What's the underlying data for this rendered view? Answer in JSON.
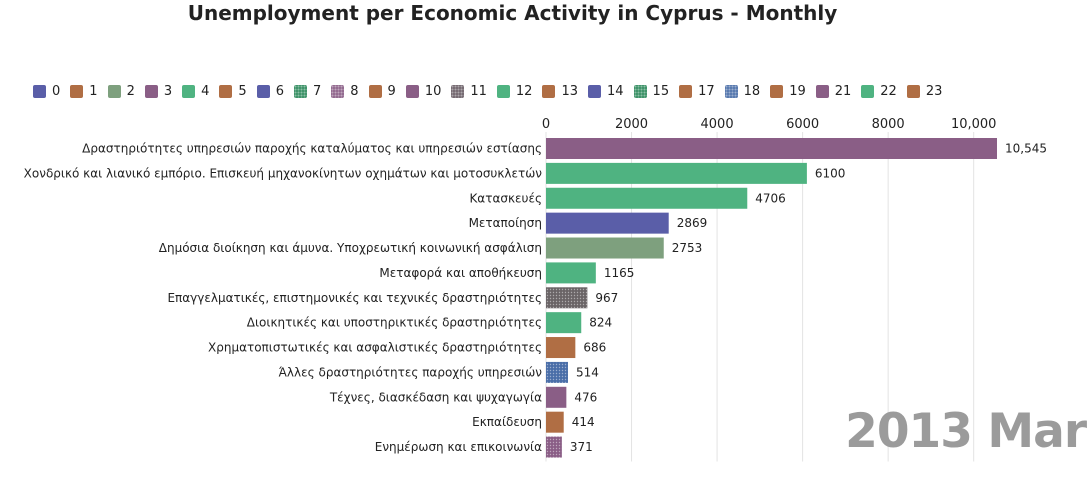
{
  "title": "Unemployment per Economic Activity in Cyprus - Monthly",
  "period_label": "2013 Mar",
  "legend": [
    {
      "label": "0",
      "color": "#5a5ea8",
      "pattern": false
    },
    {
      "label": "1",
      "color": "#b06e44",
      "pattern": false
    },
    {
      "label": "2",
      "color": "#7ea07e",
      "pattern": false
    },
    {
      "label": "3",
      "color": "#8a5e86",
      "pattern": false
    },
    {
      "label": "4",
      "color": "#4fb381",
      "pattern": false
    },
    {
      "label": "5",
      "color": "#b06e44",
      "pattern": false
    },
    {
      "label": "6",
      "color": "#5a5ea8",
      "pattern": false
    },
    {
      "label": "7",
      "color": "#2e8a5c",
      "pattern": true
    },
    {
      "label": "8",
      "color": "#8a5e86",
      "pattern": true
    },
    {
      "label": "9",
      "color": "#b06e44",
      "pattern": false
    },
    {
      "label": "10",
      "color": "#8a5e86",
      "pattern": false
    },
    {
      "label": "11",
      "color": "#6a5e66",
      "pattern": true
    },
    {
      "label": "12",
      "color": "#4fb381",
      "pattern": false
    },
    {
      "label": "13",
      "color": "#b06e44",
      "pattern": false
    },
    {
      "label": "14",
      "color": "#5a5ea8",
      "pattern": false
    },
    {
      "label": "15",
      "color": "#2e8a5c",
      "pattern": true
    },
    {
      "label": "17",
      "color": "#b06e44",
      "pattern": false
    },
    {
      "label": "18",
      "color": "#4a6ea8",
      "pattern": true
    },
    {
      "label": "19",
      "color": "#b06e44",
      "pattern": false
    },
    {
      "label": "21",
      "color": "#8a5e86",
      "pattern": false
    },
    {
      "label": "22",
      "color": "#4fb381",
      "pattern": false
    },
    {
      "label": "23",
      "color": "#b06e44",
      "pattern": false
    }
  ],
  "chart_data": {
    "type": "bar",
    "orientation": "horizontal",
    "title": "Unemployment per Economic Activity in Cyprus - Monthly",
    "period": "2013 Mar",
    "xlim": [
      0,
      10545
    ],
    "ticks": [
      {
        "value": 0,
        "label": "0"
      },
      {
        "value": 2000,
        "label": "2000"
      },
      {
        "value": 4000,
        "label": "4000"
      },
      {
        "value": 6000,
        "label": "6000"
      },
      {
        "value": 8000,
        "label": "8000"
      },
      {
        "value": 10000,
        "label": "10,000"
      }
    ],
    "grid": true,
    "legend_position": "top",
    "bars": [
      {
        "category": "Δραστηριότητες υπηρεσιών παροχής καταλύματος και υπηρεσιών εστίασης",
        "value": 10545,
        "value_label": "10,545",
        "color": "#8a5e86",
        "pattern": false
      },
      {
        "category": "Χονδρικό και λιανικό εμπόριο. Επισκευή μηχανοκίνητων οχημάτων και μοτοσυκλετών",
        "value": 6100,
        "value_label": "6100",
        "color": "#4fb381",
        "pattern": false
      },
      {
        "category": "Κατασκευές",
        "value": 4706,
        "value_label": "4706",
        "color": "#4fb381",
        "pattern": false
      },
      {
        "category": "Μεταποίηση",
        "value": 2869,
        "value_label": "2869",
        "color": "#5a5ea8",
        "pattern": false
      },
      {
        "category": "Δημόσια διοίκηση και άμυνα. Υποχρεωτική κοινωνική ασφάλιση",
        "value": 2753,
        "value_label": "2753",
        "color": "#7ea07e",
        "pattern": false
      },
      {
        "category": "Μεταφορά και αποθήκευση",
        "value": 1165,
        "value_label": "1165",
        "color": "#4fb381",
        "pattern": false
      },
      {
        "category": "Επαγγελματικές, επιστημονικές και τεχνικές δραστηριότητες",
        "value": 967,
        "value_label": "967",
        "color": "#6a6466",
        "pattern": true
      },
      {
        "category": "Διοικητικές και υποστηρικτικές δραστηριότητες",
        "value": 824,
        "value_label": "824",
        "color": "#4fb381",
        "pattern": false
      },
      {
        "category": "Χρηματοπιστωτικές και ασφαλιστικές δραστηριότητες",
        "value": 686,
        "value_label": "686",
        "color": "#b06e44",
        "pattern": false
      },
      {
        "category": "Άλλες δραστηριότητες παροχής υπηρεσιών",
        "value": 514,
        "value_label": "514",
        "color": "#4a6ea8",
        "pattern": true
      },
      {
        "category": "Τέχνες, διασκέδαση και ψυχαγωγία",
        "value": 476,
        "value_label": "476",
        "color": "#8a5e86",
        "pattern": false
      },
      {
        "category": "Εκπαίδευση",
        "value": 414,
        "value_label": "414",
        "color": "#b06e44",
        "pattern": false
      },
      {
        "category": "Ενημέρωση και επικοινωνία",
        "value": 371,
        "value_label": "371",
        "color": "#8a5e86",
        "pattern": true
      }
    ]
  }
}
